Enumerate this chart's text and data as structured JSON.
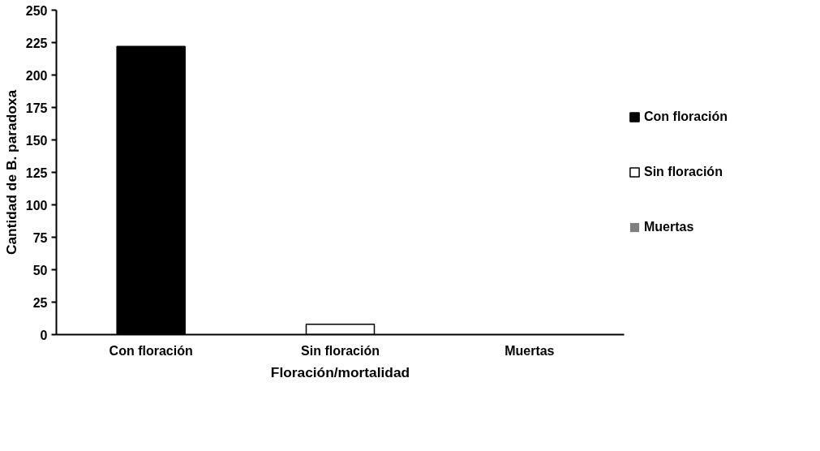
{
  "chart_data": {
    "type": "bar",
    "xlabel": "Floración/mortalidad",
    "ylabel": "Cantidad de B. paradoxa",
    "categories": [
      "Con floración",
      "Sin floración",
      "Muertas"
    ],
    "series": [
      {
        "name": "Con floración",
        "color": "#000000",
        "values": [
          222,
          null,
          null
        ]
      },
      {
        "name": "Sin floración",
        "color": "#ffffff",
        "values": [
          null,
          8,
          null
        ]
      },
      {
        "name": "Muertas",
        "color": "#808080",
        "values": [
          null,
          null,
          0
        ]
      }
    ],
    "ylim": [
      0,
      250
    ],
    "yticks": [
      0,
      25,
      50,
      75,
      100,
      125,
      150,
      175,
      200,
      225,
      250
    ],
    "legend": "right"
  }
}
